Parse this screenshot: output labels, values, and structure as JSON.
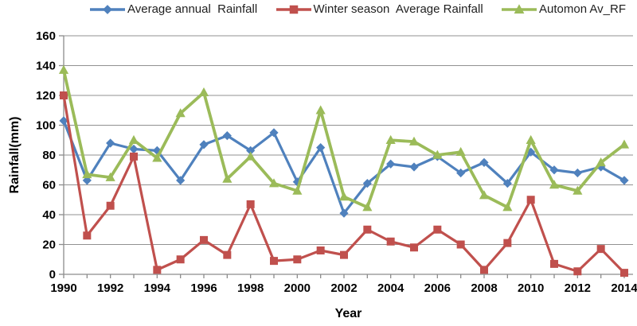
{
  "chart_data": {
    "type": "line",
    "title": "",
    "xlabel": "Year",
    "ylabel": "Rainfall(mm)",
    "ylim": [
      0,
      160
    ],
    "ytick_step": 20,
    "y_ticks": [
      0,
      20,
      40,
      60,
      80,
      100,
      120,
      140,
      160
    ],
    "x": [
      1990,
      1991,
      1992,
      1993,
      1994,
      1995,
      1996,
      1997,
      1998,
      1999,
      2000,
      2001,
      2002,
      2003,
      2004,
      2005,
      2006,
      2007,
      2008,
      2009,
      2010,
      2011,
      2012,
      2013,
      2014
    ],
    "x_tick_labels": [
      1990,
      1992,
      1994,
      1996,
      1998,
      2000,
      2002,
      2004,
      2006,
      2008,
      2010,
      2012,
      2014
    ],
    "grid": true,
    "legend_position": "top",
    "grid_color": "#919191",
    "axis_color": "#8c8c8c",
    "tick_label_color": "#000000",
    "series": [
      {
        "name": "Average annual  Rainfall",
        "marker": "diamond",
        "color": "#4F81BD",
        "values": [
          103,
          63,
          88,
          84,
          83,
          63,
          87,
          93,
          83,
          95,
          62,
          85,
          41,
          61,
          74,
          72,
          79,
          68,
          75,
          61,
          82,
          70,
          68,
          72,
          63
        ]
      },
      {
        "name": "Winter season  Average Rainfall",
        "marker": "square",
        "color": "#C0504D",
        "values": [
          120,
          26,
          46,
          79,
          3,
          10,
          23,
          13,
          47,
          9,
          10,
          16,
          13,
          30,
          22,
          18,
          30,
          20,
          3,
          21,
          50,
          7,
          2,
          17,
          1
        ]
      },
      {
        "name": "Automon Av_RF",
        "marker": "triangle",
        "color": "#9BBB59",
        "values": [
          137,
          67,
          65,
          90,
          78,
          108,
          122,
          64,
          79,
          61,
          56,
          110,
          52,
          45,
          90,
          89,
          80,
          82,
          53,
          45,
          90,
          60,
          56,
          75,
          87
        ]
      }
    ]
  }
}
